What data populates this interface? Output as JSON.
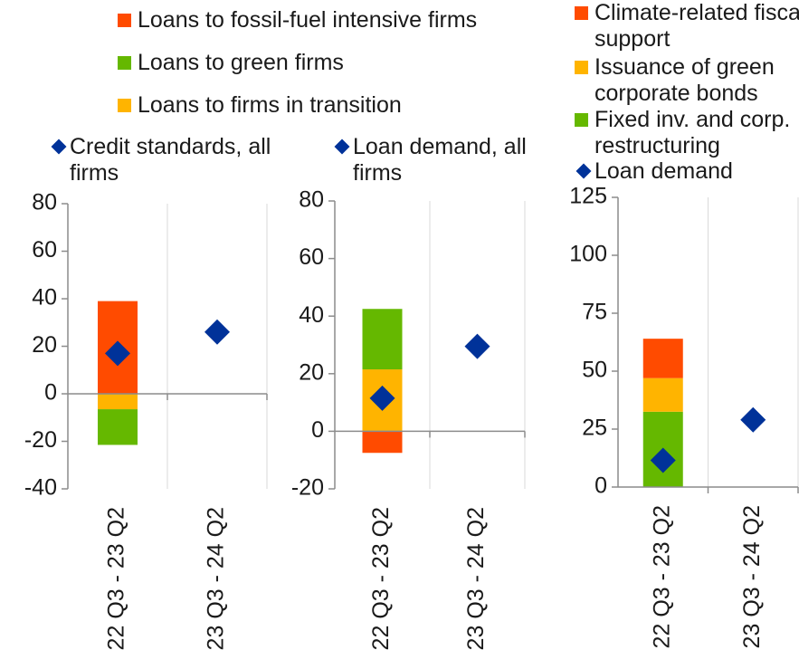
{
  "chart_data": [
    {
      "type": "bar",
      "stacked": true,
      "categories": [
        "22 Q3 - 23 Q2",
        "23 Q3 - 24 Q2"
      ],
      "ylim": [
        -40,
        80
      ],
      "yticks": [
        -40,
        -20,
        0,
        20,
        40,
        60,
        80
      ],
      "grid": true,
      "series": [
        {
          "name": "Loans to fossil-fuel intensive firms",
          "color": "#ff4b00",
          "values": [
            39,
            null
          ]
        },
        {
          "name": "Loans to firms in transition",
          "color": "#ffb400",
          "values": [
            -6.5,
            null
          ]
        },
        {
          "name": "Loans to green firms",
          "color": "#65b800",
          "values": [
            -15,
            null
          ]
        },
        {
          "name": "Credit standards, all firms",
          "color": "#003299",
          "marker": "diamond",
          "values": [
            17,
            26
          ]
        }
      ]
    },
    {
      "type": "bar",
      "stacked": true,
      "categories": [
        "22 Q3 - 23 Q2",
        "23 Q3 - 24 Q2"
      ],
      "ylim": [
        -20,
        80
      ],
      "yticks": [
        -20,
        0,
        20,
        40,
        60,
        80
      ],
      "grid": true,
      "series": [
        {
          "color": "#ffb400",
          "values": [
            21.5,
            null
          ]
        },
        {
          "color": "#65b800",
          "values": [
            21,
            null
          ]
        },
        {
          "color": "#ff4b00",
          "values": [
            -7.5,
            null
          ]
        },
        {
          "name": "Loan demand, all firms",
          "color": "#003299",
          "marker": "diamond",
          "values": [
            11.5,
            29.5
          ]
        }
      ]
    },
    {
      "type": "bar",
      "stacked": true,
      "categories": [
        "22 Q3 - 23 Q2",
        "23 Q3 - 24 Q2"
      ],
      "ylim": [
        0,
        125
      ],
      "yticks": [
        0,
        25,
        50,
        75,
        100,
        125
      ],
      "grid": true,
      "series": [
        {
          "name": "Fixed inv. and corp. restructuring",
          "color": "#65b800",
          "values": [
            32.5,
            null
          ]
        },
        {
          "name": "Issuance of green corporate bonds",
          "color": "#ffb400",
          "values": [
            14.5,
            null
          ]
        },
        {
          "name": "Climate-related fiscal support",
          "color": "#ff4b00",
          "values": [
            17,
            null
          ]
        },
        {
          "name": "Loan demand",
          "color": "#003299",
          "marker": "diamond",
          "values": [
            11.5,
            29
          ]
        }
      ]
    }
  ]
}
